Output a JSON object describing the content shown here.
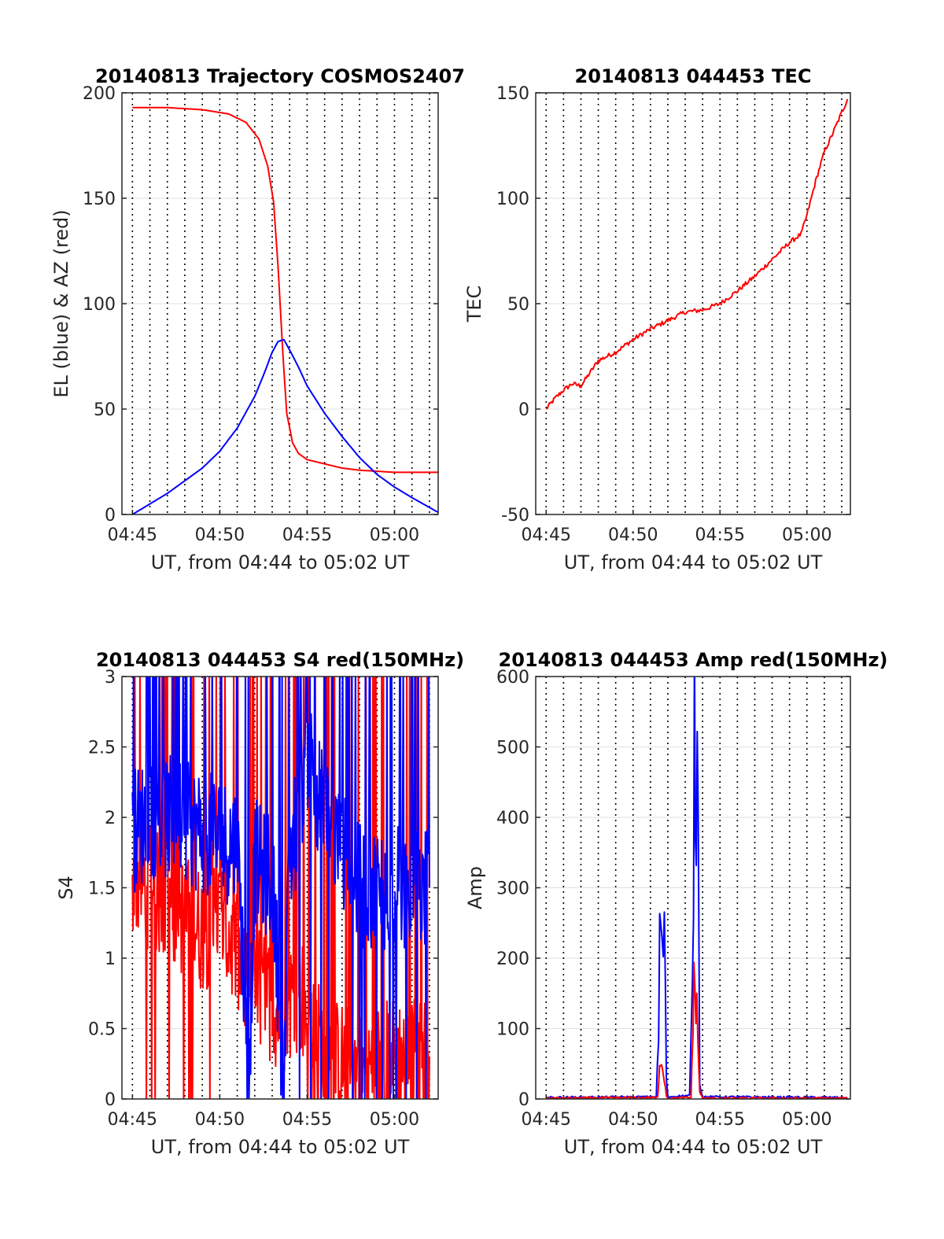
{
  "chart_data": [
    {
      "type": "line",
      "title": "20140813 Trajectory COSMOS2407",
      "xlabel": "UT, from 04:44 to 05:02 UT",
      "ylabel": "EL (blue) & AZ (red)",
      "xlim": [
        "04:44:24",
        "05:02:30"
      ],
      "ylim": [
        0,
        200
      ],
      "x_ticks": [
        "04:45",
        "04:50",
        "04:55",
        "05:00"
      ],
      "y_ticks": [
        "0",
        "50",
        "100",
        "150",
        "200"
      ],
      "grid": "dotted vertical lines every minute",
      "series": [
        {
          "name": "AZ",
          "color": "#ff0000",
          "x": [
            "04:45:00",
            "04:47:00",
            "04:49:00",
            "04:50:30",
            "04:51:30",
            "04:52:15",
            "04:52:45",
            "04:53:05",
            "04:53:20",
            "04:53:35",
            "04:53:50",
            "04:54:10",
            "04:54:30",
            "04:55:00",
            "04:55:30",
            "04:56:00",
            "04:57:00",
            "04:58:00",
            "04:59:00",
            "05:00:00",
            "05:02:30"
          ],
          "values": [
            193,
            193,
            192,
            190,
            186,
            178,
            165,
            148,
            118,
            80,
            48,
            34,
            29,
            26,
            25,
            24,
            22,
            21,
            20.5,
            20,
            20
          ]
        },
        {
          "name": "EL",
          "color": "#0000ff",
          "x": [
            "04:45:00",
            "04:46:00",
            "04:47:00",
            "04:48:00",
            "04:49:00",
            "04:50:00",
            "04:51:00",
            "04:52:00",
            "04:52:30",
            "04:53:00",
            "04:53:20",
            "04:53:40",
            "04:54:00",
            "04:54:30",
            "04:55:00",
            "04:56:00",
            "04:57:00",
            "04:58:00",
            "04:59:00",
            "05:00:00",
            "05:01:00",
            "05:02:30"
          ],
          "values": [
            0,
            5,
            10,
            16,
            22,
            30,
            41,
            56,
            66,
            77,
            82,
            83,
            78,
            70,
            61,
            48,
            37,
            27,
            19,
            13,
            8,
            1
          ]
        }
      ]
    },
    {
      "type": "line",
      "title": "20140813 044453 TEC",
      "xlabel": "UT, from 04:44 to 05:02 UT",
      "ylabel": "TEC",
      "xlim": [
        "04:44:24",
        "05:02:30"
      ],
      "ylim": [
        -50,
        150
      ],
      "x_ticks": [
        "04:45",
        "04:50",
        "04:55",
        "05:00"
      ],
      "y_ticks": [
        "-50",
        "0",
        "50",
        "100",
        "150"
      ],
      "grid": "dotted vertical lines every minute",
      "series": [
        {
          "color": "#ff0000",
          "x": [
            "04:45:00",
            "04:45:30",
            "04:46:00",
            "04:46:30",
            "04:47:00",
            "04:47:30",
            "04:48:00",
            "04:49:00",
            "04:50:00",
            "04:51:00",
            "04:52:00",
            "04:53:00",
            "04:54:00",
            "04:55:00",
            "04:56:00",
            "04:57:00",
            "04:58:00",
            "04:59:00",
            "04:59:40",
            "05:00:00",
            "05:00:30",
            "05:01:00",
            "05:01:30",
            "05:02:20"
          ],
          "values": [
            0,
            5,
            9,
            12,
            11,
            17,
            23,
            27,
            33,
            38,
            42,
            46,
            47,
            50,
            56,
            63,
            71,
            79,
            83,
            92,
            108,
            122,
            131,
            147
          ]
        }
      ]
    },
    {
      "type": "line",
      "title": "20140813 044453 S4 red(150MHz)",
      "xlabel": "UT, from 04:44 to 05:02 UT",
      "ylabel": "S4",
      "xlim": [
        "04:44:24",
        "05:02:30"
      ],
      "ylim": [
        0,
        3
      ],
      "x_ticks": [
        "04:45",
        "04:50",
        "04:55",
        "05:00"
      ],
      "y_ticks": [
        "0",
        "0.5",
        "1",
        "1.5",
        "2",
        "2.5",
        "3"
      ],
      "grid": "dotted vertical lines every minute",
      "series": [
        {
          "color": "#ff0000",
          "description_note": "",
          "x": [
            "04:45:00",
            "04:46:00",
            "04:47:00",
            "04:48:00",
            "04:49:00",
            "04:50:00",
            "04:51:00",
            "04:51:30",
            "04:52:00",
            "04:52:30",
            "04:53:00",
            "04:53:30",
            "04:54:00",
            "04:54:30",
            "04:55:00",
            "04:56:00",
            "04:58:00",
            "05:00:00",
            "05:02:00"
          ],
          "values": [
            1.6,
            1.5,
            1.4,
            1.3,
            1.2,
            1.3,
            1.0,
            0.8,
            0.8,
            0.75,
            0.7,
            0.6,
            0.7,
            0.8,
            0.6,
            0.3,
            0.2,
            0.3,
            0.3
          ]
        },
        {
          "color": "#0000ff",
          "x": [
            "04:45:00",
            "04:46:00",
            "04:47:00",
            "04:48:00",
            "04:49:00",
            "04:50:00",
            "04:51:00",
            "04:51:40",
            "04:52:00",
            "04:52:30",
            "04:53:00",
            "04:53:40",
            "04:54:00",
            "04:54:30",
            "04:55:00",
            "04:56:00",
            "04:58:00",
            "05:00:00",
            "05:02:00"
          ],
          "values": [
            1.9,
            2.0,
            2.0,
            1.95,
            1.9,
            1.85,
            1.8,
            0.15,
            1.7,
            1.6,
            1.6,
            0.1,
            1.7,
            2.0,
            2.5,
            2.0,
            1.5,
            1.5,
            1.5
          ]
        }
      ]
    },
    {
      "type": "line",
      "title": "20140813 044453 Amp red(150MHz)",
      "xlabel": "UT, from 04:44 to 05:02 UT",
      "ylabel": "Amp",
      "xlim": [
        "04:44:24",
        "05:02:30"
      ],
      "ylim": [
        0,
        600
      ],
      "x_ticks": [
        "04:45",
        "04:50",
        "04:55",
        "05:00"
      ],
      "y_ticks": [
        "0",
        "100",
        "200",
        "300",
        "400",
        "500",
        "600"
      ],
      "grid": "dotted vertical lines every minute",
      "series": [
        {
          "color": "#0000ff",
          "x": [
            "04:45:00",
            "04:51:20",
            "04:51:28",
            "04:51:32",
            "04:51:40",
            "04:51:48",
            "04:51:55",
            "04:52:00",
            "04:53:15",
            "04:53:25",
            "04:53:32",
            "04:53:38",
            "04:53:45",
            "04:53:50",
            "04:54:00",
            "05:02:20"
          ],
          "values": [
            2,
            3,
            80,
            260,
            200,
            250,
            30,
            3,
            5,
            150,
            520,
            400,
            510,
            20,
            3,
            2
          ]
        },
        {
          "color": "#ff0000",
          "x": [
            "04:45:00",
            "04:51:25",
            "04:51:35",
            "04:51:45",
            "04:51:55",
            "04:52:00",
            "04:53:20",
            "04:53:30",
            "04:53:40",
            "04:53:50",
            "04:54:00",
            "05:02:20"
          ],
          "values": [
            1,
            2,
            60,
            40,
            5,
            1,
            2,
            160,
            130,
            10,
            1,
            1
          ]
        }
      ]
    }
  ]
}
